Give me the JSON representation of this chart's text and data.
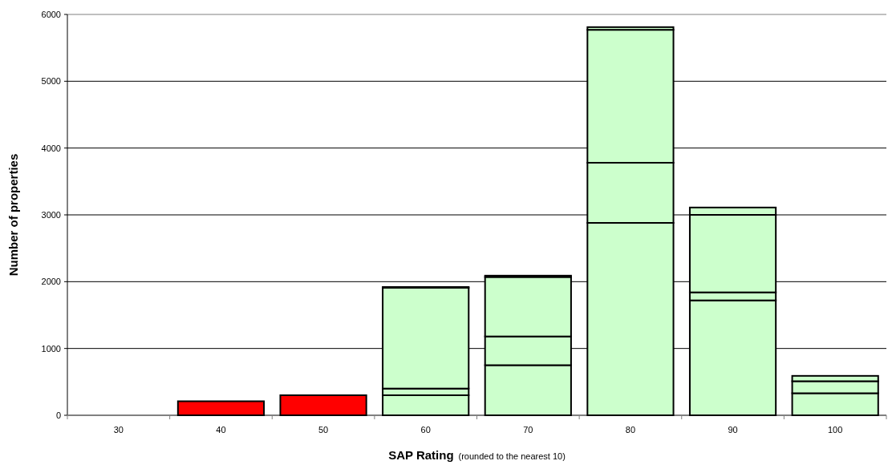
{
  "chart_data": {
    "type": "bar",
    "stacked": true,
    "categories": [
      "30",
      "40",
      "50",
      "60",
      "70",
      "80",
      "90",
      "100"
    ],
    "series": [
      {
        "colors": [
          "#ff0000",
          "#ff0000",
          "#ff0000",
          "#ccffcc",
          "#ccffcc",
          "#ccffcc",
          "#ccffcc",
          "#ccffcc"
        ],
        "values": [
          0,
          210,
          300,
          300,
          750,
          2880,
          1720,
          330
        ]
      },
      {
        "colors": [
          "#ff0000",
          "#ff0000",
          "#ff0000",
          "#ccffcc",
          "#ccffcc",
          "#ccffcc",
          "#ccffcc",
          "#ccffcc"
        ],
        "values": [
          0,
          0,
          0,
          100,
          430,
          900,
          120,
          180
        ]
      },
      {
        "colors": [
          "#ff0000",
          "#ff0000",
          "#ff0000",
          "#ccffcc",
          "#ccffcc",
          "#ccffcc",
          "#ccffcc",
          "#ccffcc"
        ],
        "values": [
          0,
          0,
          0,
          1510,
          890,
          1990,
          1160,
          80
        ]
      },
      {
        "colors": [
          "#ff0000",
          "#ff0000",
          "#ff0000",
          "#ccffcc",
          "#ccffcc",
          "#ccffcc",
          "#ccffcc",
          "#ccffcc"
        ],
        "values": [
          0,
          0,
          0,
          10,
          20,
          40,
          110,
          0
        ]
      }
    ],
    "ylim": [
      0,
      6000
    ],
    "yticks": [
      0,
      1000,
      2000,
      3000,
      4000,
      5000,
      6000
    ],
    "grid": "y",
    "xlabel": "SAP Rating",
    "ylabel": "Number of properties",
    "annotations": [
      "(rounded to the nearest 10)"
    ]
  }
}
